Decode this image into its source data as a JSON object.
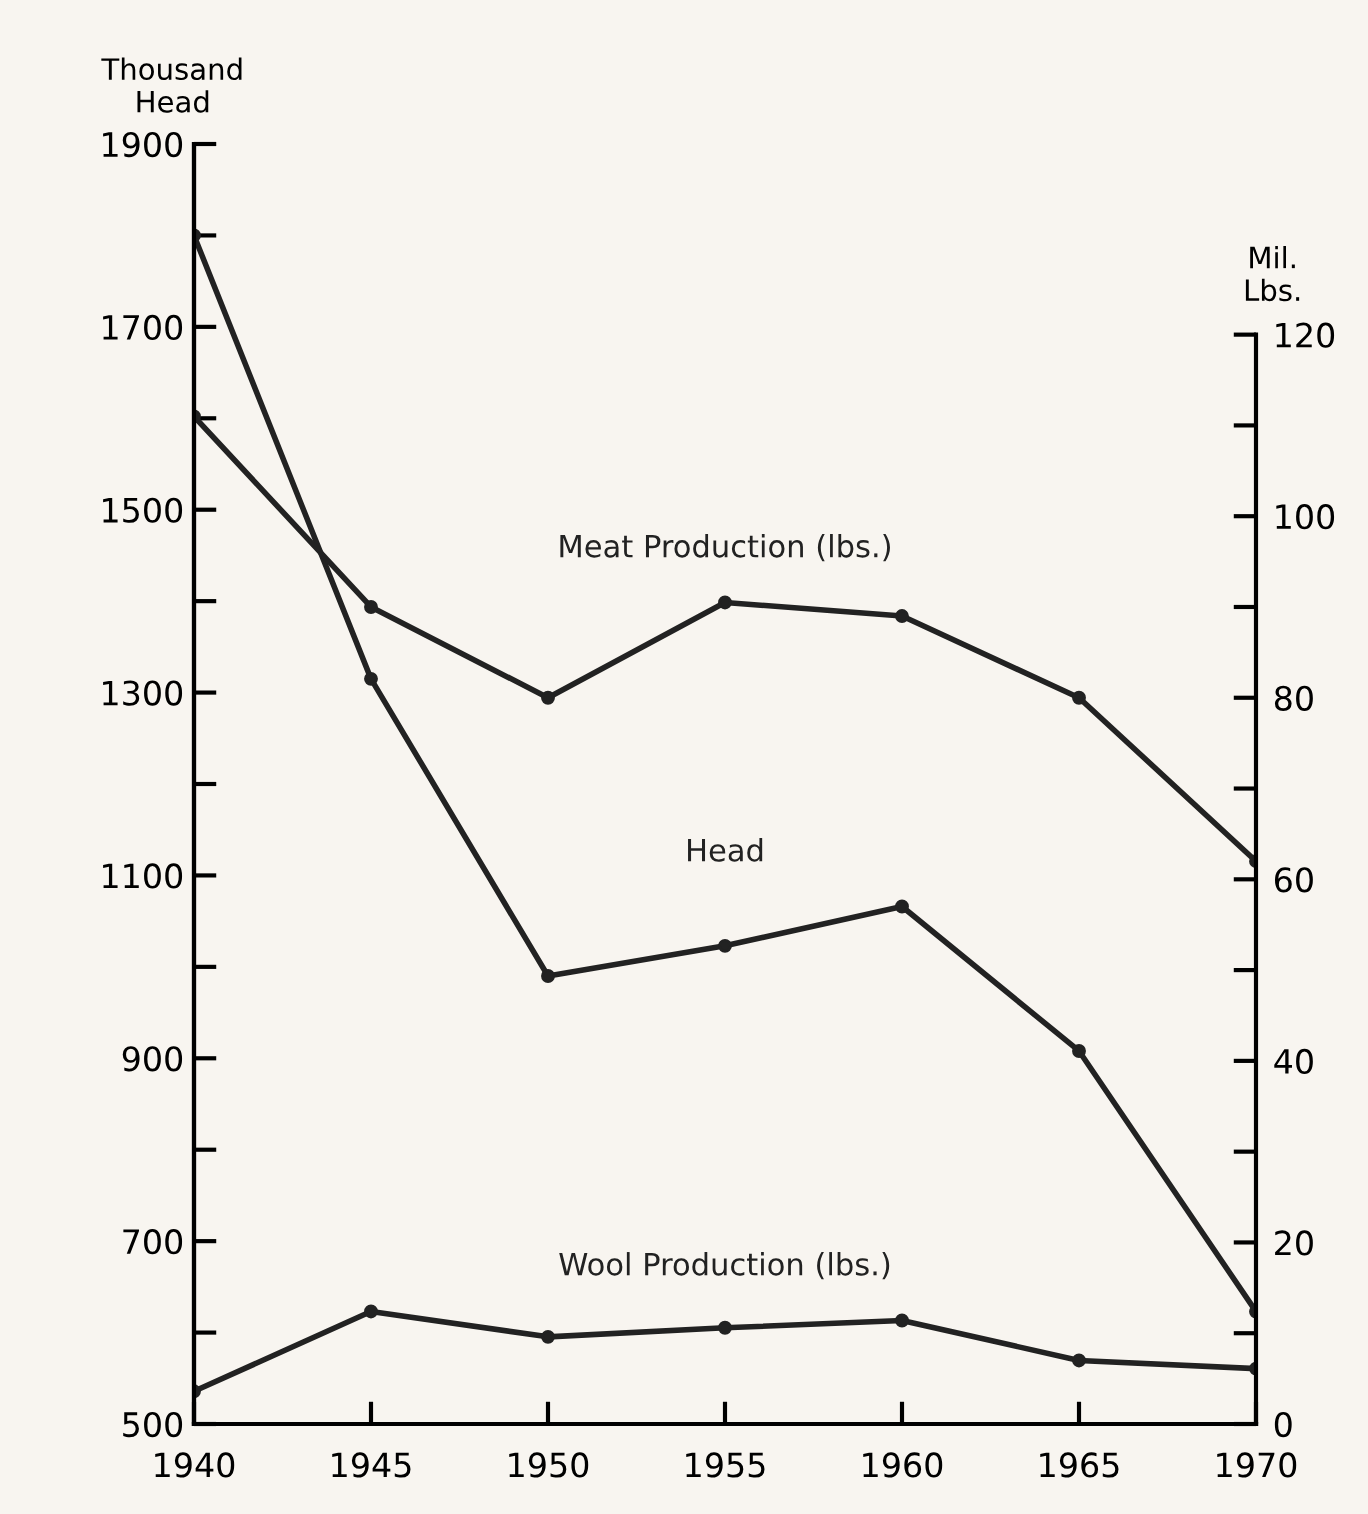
{
  "chart_data": {
    "type": "line",
    "ylabel": "Thousand\nHead",
    "y2label": "Mil.\nLbs.",
    "x": [
      1940,
      1945,
      1950,
      1955,
      1960,
      1965,
      1970
    ],
    "series": [
      {
        "name": "Meat Production (lbs.)",
        "color": "#222222",
        "axis": "y2",
        "marker": "circle",
        "values": [
          111,
          90,
          80,
          90.5,
          89,
          80,
          62
        ]
      },
      {
        "name": "Head",
        "color": "#222222",
        "marker": "circle",
        "values": [
          1800,
          1315,
          990,
          1023,
          1066,
          908,
          623
        ]
      },
      {
        "name": "Wool Production (lbs.)",
        "color": "#222222",
        "axis": "y2",
        "marker": "circle",
        "values": [
          3.6,
          12.4,
          9.6,
          10.6,
          11.4,
          7.0,
          6.1
        ]
      }
    ],
    "xlim": [
      1940,
      1970
    ],
    "xticks": [
      1940,
      1945,
      1950,
      1955,
      1960,
      1965,
      1970
    ],
    "ylim": [
      500,
      1900
    ],
    "yticks": [
      500,
      {
        "value": 600,
        "label": null
      },
      700,
      {
        "value": 800,
        "label": null
      },
      900,
      {
        "value": 1000,
        "label": null
      },
      1100,
      {
        "value": 1200,
        "label": null
      },
      1300,
      {
        "value": 1400,
        "label": null
      },
      1500,
      {
        "value": 1600,
        "label": null
      },
      1700,
      {
        "value": 1800,
        "label": null
      },
      1900
    ],
    "y2lim": [
      0,
      141
    ],
    "y2ticks": [
      0,
      {
        "value": 10,
        "label": null
      },
      20,
      {
        "value": 30,
        "label": null
      },
      40,
      {
        "value": 50,
        "label": null
      },
      60,
      {
        "value": 70,
        "label": null
      },
      80,
      {
        "value": 90,
        "label": null
      },
      100,
      {
        "value": 110,
        "label": null
      },
      120
    ],
    "grid": false,
    "legend": false,
    "line_style": "solid"
  }
}
